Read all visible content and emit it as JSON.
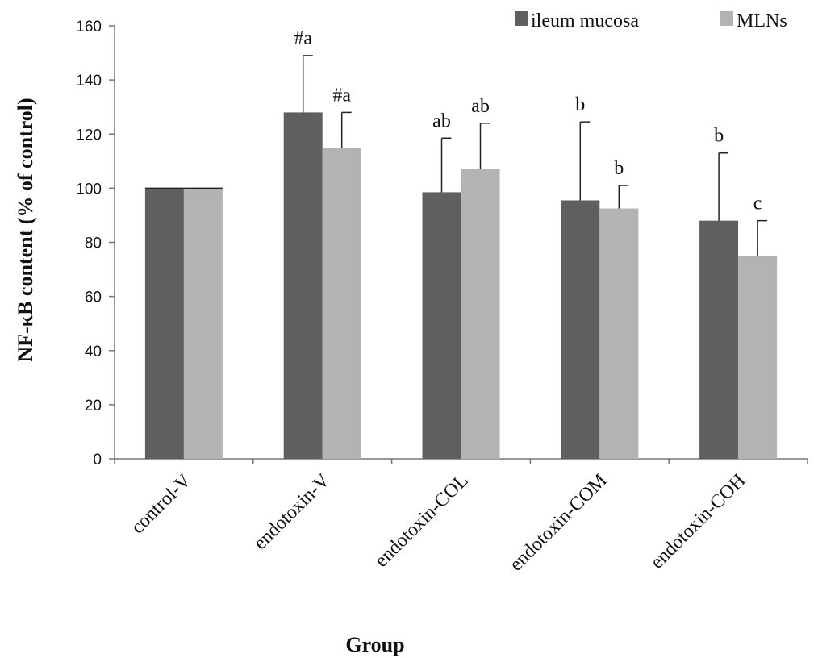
{
  "chart_data": {
    "type": "bar",
    "title": "",
    "xlabel": "Group",
    "ylabel": "NF-κB content (% of control)",
    "ylim": [
      0,
      160
    ],
    "yticks": [
      0,
      20,
      40,
      60,
      80,
      100,
      120,
      140,
      160
    ],
    "categories": [
      "control-V",
      "endotoxin-V",
      "endotoxin-COL",
      "endotoxin-COM",
      "endotoxin-COH"
    ],
    "series": [
      {
        "name": "ileum mucosa",
        "color": "#5f5f61",
        "values": [
          100,
          128,
          98.5,
          95.5,
          88
        ],
        "errors": [
          0,
          21,
          20,
          29,
          25
        ],
        "labels": [
          "",
          "#a",
          "ab",
          "b",
          "b"
        ]
      },
      {
        "name": "MLNs",
        "color": "#b3b3b5",
        "values": [
          100,
          115,
          107,
          92.5,
          75
        ],
        "errors": [
          0,
          13,
          17,
          8.5,
          13
        ],
        "labels": [
          "",
          "#a",
          "ab",
          "b",
          "c"
        ]
      }
    ],
    "legend_position": "top-right",
    "grid": false
  }
}
